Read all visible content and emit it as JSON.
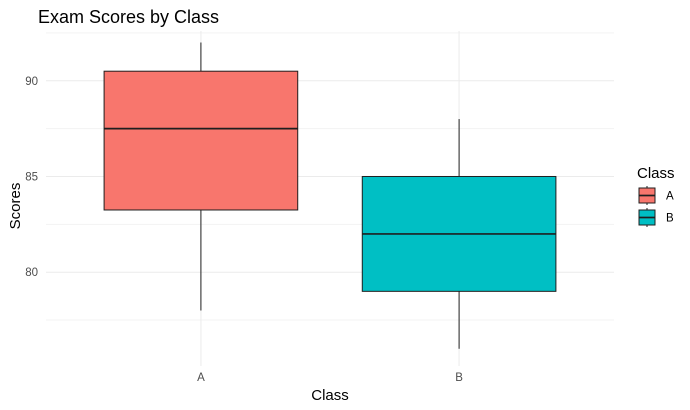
{
  "chart_data": {
    "type": "box",
    "title": "Exam Scores by Class",
    "xlabel": "Class",
    "ylabel": "Scores",
    "categories": [
      "A",
      "B"
    ],
    "series": [
      {
        "category": "A",
        "min": 78,
        "q1": 83.25,
        "median": 87.5,
        "q3": 90.5,
        "max": 92,
        "color": "#F8766D"
      },
      {
        "category": "B",
        "min": 76,
        "q1": 79,
        "median": 82,
        "q3": 85,
        "max": 88,
        "color": "#00BFC4"
      }
    ],
    "ylim": [
      75.1,
      92.6
    ],
    "y_ticks": [
      80,
      85,
      90
    ],
    "y_tick_labels": [
      "80",
      "85",
      "90"
    ],
    "grid": true,
    "legend": {
      "title": "Class",
      "position": "right",
      "items": [
        {
          "label": "A",
          "color": "#F8766D"
        },
        {
          "label": "B",
          "color": "#00BFC4"
        }
      ]
    }
  }
}
